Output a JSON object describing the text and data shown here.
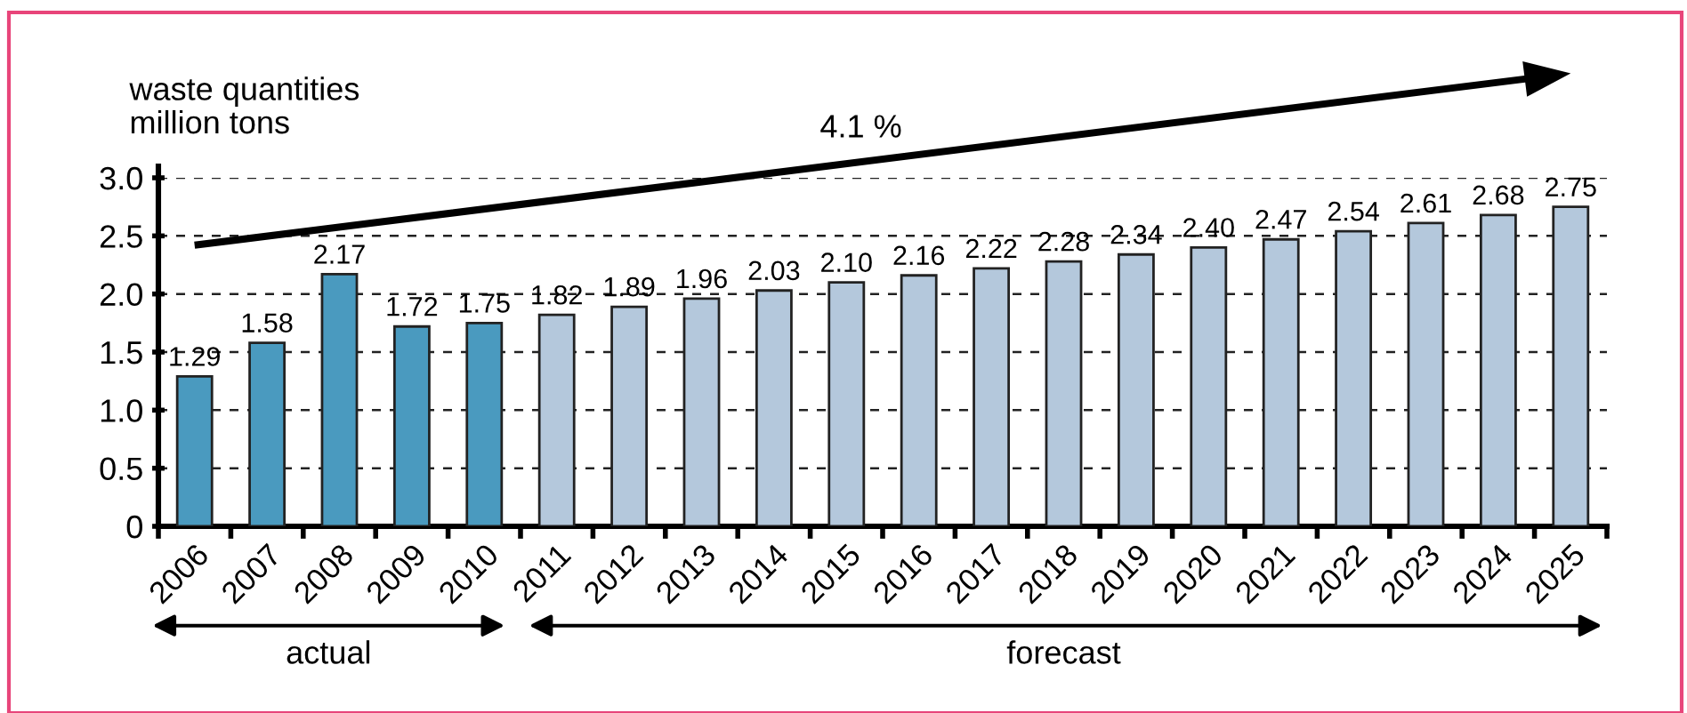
{
  "chart_data": {
    "type": "bar",
    "ylabel": "waste quantities\nmillion tons",
    "categories": [
      "2006",
      "2007",
      "2008",
      "2009",
      "2010",
      "2011",
      "2012",
      "2013",
      "2014",
      "2015",
      "2016",
      "2017",
      "2018",
      "2019",
      "2020",
      "2021",
      "2022",
      "2023",
      "2024",
      "2025"
    ],
    "values": [
      1.29,
      1.58,
      2.17,
      1.72,
      1.75,
      1.82,
      1.89,
      1.96,
      2.03,
      2.1,
      2.16,
      2.22,
      2.28,
      2.34,
      2.4,
      2.47,
      2.54,
      2.61,
      2.68,
      2.75
    ],
    "value_labels": [
      "1.29",
      "1.58",
      "2.17",
      "1.72",
      "1.75",
      "1.82",
      "1.89",
      "1.96",
      "2.03",
      "2.10",
      "2.16",
      "2.22",
      "2.28",
      "2.34",
      "2.40",
      "2.47",
      "2.54",
      "2.61",
      "2.68",
      "2.75"
    ],
    "colors": [
      "#4a9abf",
      "#4a9abf",
      "#4a9abf",
      "#4a9abf",
      "#4a9abf",
      "#b4c8dc",
      "#b4c8dc",
      "#b4c8dc",
      "#b4c8dc",
      "#b4c8dc",
      "#b4c8dc",
      "#b4c8dc",
      "#b4c8dc",
      "#b4c8dc",
      "#b4c8dc",
      "#b4c8dc",
      "#b4c8dc",
      "#b4c8dc",
      "#b4c8dc",
      "#b4c8dc"
    ],
    "ylim": [
      0,
      3.0
    ],
    "yticks": [
      0,
      0.5,
      {
        "value": 1,
        "label": "1.0"
      },
      1.5,
      {
        "value": 2,
        "label": "2.0"
      },
      2.5,
      {
        "value": 3,
        "label": "3.0"
      }
    ],
    "grid": "y",
    "annotations": [
      "4.1 %",
      "actual",
      "forecast"
    ]
  }
}
